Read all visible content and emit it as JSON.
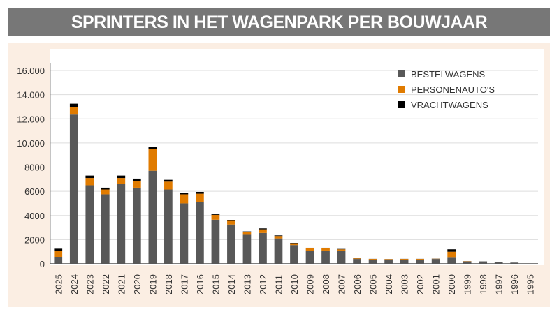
{
  "chart_data": {
    "type": "bar",
    "stacked": true,
    "title": "SPRINTERS IN HET WAGENPARK PER BOUWJAAR",
    "xlabel": "",
    "ylabel": "",
    "ylim": [
      0,
      16000
    ],
    "yticks": [
      0,
      2000,
      4000,
      6000,
      8000,
      10000,
      12000,
      14000,
      16000
    ],
    "ytick_labels": [
      "0",
      "2000",
      "4000",
      "6000",
      "8000",
      "10.000",
      "12.000",
      "14.000",
      "16.000"
    ],
    "grid": true,
    "legend_position": "top-right",
    "categories": [
      "2025",
      "2024",
      "2023",
      "2022",
      "2021",
      "2020",
      "2019",
      "2018",
      "2017",
      "2016",
      "2015",
      "2014",
      "2013",
      "2012",
      "2011",
      "2010",
      "2009",
      "2008",
      "2007",
      "2006",
      "2005",
      "2004",
      "2003",
      "2002",
      "2001",
      "2000",
      "1999",
      "1998",
      "1997",
      "1996",
      "1995"
    ],
    "series": [
      {
        "name": "BESTELWAGENS",
        "color": "#585858",
        "values": [
          550,
          12350,
          6500,
          5750,
          6600,
          6300,
          7700,
          6150,
          5000,
          5100,
          3650,
          3250,
          2400,
          2550,
          2100,
          1550,
          1050,
          1100,
          1100,
          400,
          300,
          300,
          300,
          300,
          400,
          500,
          200,
          200,
          150,
          100,
          0
        ]
      },
      {
        "name": "PERSONENAUTO'S",
        "color": "#e07b00",
        "values": [
          500,
          600,
          600,
          400,
          500,
          550,
          1800,
          650,
          750,
          700,
          400,
          300,
          200,
          300,
          200,
          150,
          250,
          200,
          100,
          50,
          100,
          80,
          100,
          100,
          20,
          500,
          20,
          0,
          0,
          0,
          0
        ]
      },
      {
        "name": "VRACHTWAGENS",
        "color": "#000000",
        "values": [
          200,
          300,
          200,
          150,
          200,
          200,
          200,
          150,
          100,
          150,
          100,
          50,
          80,
          80,
          50,
          30,
          30,
          30,
          30,
          10,
          10,
          10,
          10,
          10,
          10,
          200,
          0,
          0,
          0,
          0,
          0
        ]
      }
    ]
  }
}
